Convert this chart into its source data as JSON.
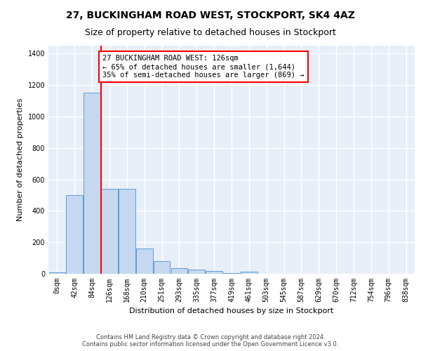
{
  "title1": "27, BUCKINGHAM ROAD WEST, STOCKPORT, SK4 4AZ",
  "title2": "Size of property relative to detached houses in Stockport",
  "xlabel": "Distribution of detached houses by size in Stockport",
  "ylabel": "Number of detached properties",
  "footnote": "Contains HM Land Registry data © Crown copyright and database right 2024.\nContains public sector information licensed under the Open Government Licence v3.0.",
  "categories": [
    "0sqm",
    "42sqm",
    "84sqm",
    "126sqm",
    "168sqm",
    "210sqm",
    "251sqm",
    "293sqm",
    "335sqm",
    "377sqm",
    "419sqm",
    "461sqm",
    "503sqm",
    "545sqm",
    "587sqm",
    "629sqm",
    "670sqm",
    "712sqm",
    "754sqm",
    "796sqm",
    "838sqm"
  ],
  "bar_values": [
    10,
    500,
    1150,
    540,
    540,
    160,
    80,
    35,
    28,
    18,
    5,
    15,
    0,
    0,
    0,
    0,
    0,
    0,
    0,
    0,
    0
  ],
  "bar_color": "#c5d8f0",
  "bar_edge_color": "#5b9bd5",
  "property_line_x": 3,
  "annotation_text": "27 BUCKINGHAM ROAD WEST: 126sqm\n← 65% of detached houses are smaller (1,644)\n35% of semi-detached houses are larger (869) →",
  "annotation_box_color": "white",
  "annotation_box_edge_color": "red",
  "vline_color": "red",
  "ylim": [
    0,
    1450
  ],
  "yticks": [
    0,
    200,
    400,
    600,
    800,
    1000,
    1200,
    1400
  ],
  "background_color": "#e8eef8",
  "grid_color": "white",
  "title_fontsize": 10,
  "subtitle_fontsize": 9,
  "axis_label_fontsize": 8,
  "tick_fontsize": 7,
  "annotation_fontsize": 7.5,
  "footnote_fontsize": 6
}
